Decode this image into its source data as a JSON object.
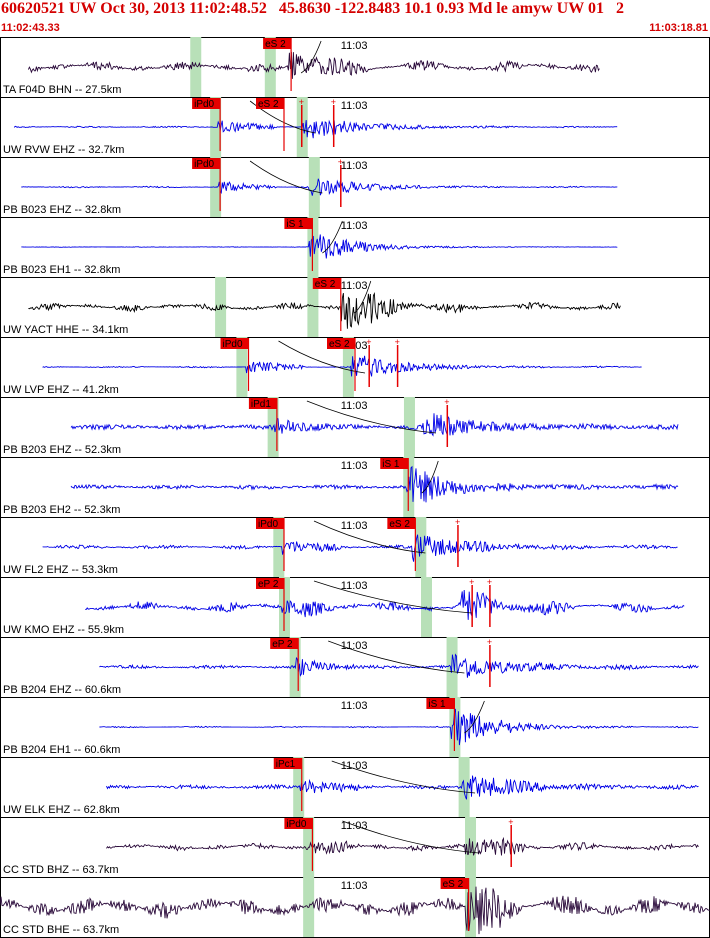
{
  "header": {
    "title": "60620521 UW Oct 30, 2013 11:02:48.52   45.8630 -122.8483 10.1 0.93 Md le amyw UW 01   2",
    "start_time": "11:02:43.33",
    "end_time": "11:03:18.81"
  },
  "colors": {
    "header_red": "#d40000",
    "pick_red": "#e60000",
    "velocity_blue": "#0000e6",
    "broadband_dark": "#2a0a3a",
    "black": "#000000",
    "window_green": "#b8e0b8",
    "border": "#000000"
  },
  "chart_data": {
    "type": "seismogram-stack",
    "time_window": [
      "11:02:43.33",
      "11:03:18.81"
    ],
    "minute_marker_label": "11:03",
    "move_out_curve": true,
    "traces": [
      {
        "label": "TA F04D BHN -- 27.5km",
        "color": "dark",
        "start": 0.04,
        "end": 0.845,
        "amp": 0.34,
        "picks": [
          {
            "label": "eS 2",
            "t": 0.41
          }
        ],
        "windows": [
          0.275,
          0.38
        ],
        "onset": 0.41,
        "burst": 0.41,
        "noise": 0.12,
        "wave": 0.7,
        "ticks": []
      },
      {
        "label": "UW RVW EHZ -- 32.7km",
        "color": "blue",
        "start": 0.02,
        "end": 0.87,
        "amp": 0.42,
        "picks": [
          {
            "label": "iPd0",
            "t": 0.31
          },
          {
            "label": "eS 2",
            "t": 0.4
          }
        ],
        "windows": [
          0.303,
          0.425
        ],
        "onset": 0.31,
        "burst": 0.43,
        "noise": 0.04,
        "wave": 0.05,
        "ticks": [
          0.47,
          0.425
        ]
      },
      {
        "label": "PB B023 EHZ -- 32.8km",
        "color": "blue",
        "start": 0.03,
        "end": 0.87,
        "amp": 0.34,
        "picks": [
          {
            "label": "iPd0",
            "t": 0.31
          }
        ],
        "windows": [
          0.303,
          0.442
        ],
        "onset": 0.31,
        "burst": 0.44,
        "noise": 0.04,
        "wave": 0.05,
        "ticks": [
          0.48
        ]
      },
      {
        "label": "PB B023 EH1 -- 32.8km",
        "color": "blue",
        "start": 0.03,
        "end": 0.87,
        "amp": 0.34,
        "picks": [
          {
            "label": "iS 1",
            "t": 0.44
          }
        ],
        "windows": [
          0.44
        ],
        "onset": 0.44,
        "burst": 0.44,
        "noise": 0.02,
        "wave": 0.02,
        "ticks": []
      },
      {
        "label": "UW YACT HHE -- 34.1km",
        "color": "black",
        "start": 0.04,
        "end": 0.875,
        "amp": 0.5,
        "picks": [
          {
            "label": "eS 2",
            "t": 0.48
          }
        ],
        "windows": [
          0.31,
          0.44
        ],
        "onset": 0.48,
        "burst": 0.485,
        "noise": 0.06,
        "wave": 0.35,
        "ticks": []
      },
      {
        "label": "UW LVP EHZ -- 41.2km",
        "color": "blue",
        "start": 0.06,
        "end": 0.905,
        "amp": 0.42,
        "picks": [
          {
            "label": "iPd0",
            "t": 0.35
          },
          {
            "label": "eS 2",
            "t": 0.5
          }
        ],
        "windows": [
          0.34,
          0.49
        ],
        "onset": 0.35,
        "burst": 0.5,
        "noise": 0.03,
        "wave": 0.05,
        "ticks": [
          0.56,
          0.52
        ]
      },
      {
        "label": "PB B203 EHZ -- 52.3km",
        "color": "blue",
        "start": 0.1,
        "end": 0.955,
        "amp": 0.45,
        "picks": [
          {
            "label": "iPd1",
            "t": 0.39
          }
        ],
        "windows": [
          0.384,
          0.576
        ],
        "onset": 0.39,
        "burst": 0.6,
        "noise": 0.14,
        "wave": 0.1,
        "ticks": [
          0.63
        ]
      },
      {
        "label": "PB B203 EH2 -- 52.3km",
        "color": "blue",
        "start": 0.1,
        "end": 0.955,
        "amp": 0.42,
        "picks": [
          {
            "label": "iS 1",
            "t": 0.575
          }
        ],
        "windows": [
          0.575
        ],
        "onset": 0.575,
        "burst": 0.58,
        "noise": 0.12,
        "wave": 0.1,
        "ticks": []
      },
      {
        "label": "UW FL2 EHZ -- 53.3km",
        "color": "blue",
        "start": 0.06,
        "end": 0.955,
        "amp": 0.45,
        "picks": [
          {
            "label": "iPd0",
            "t": 0.4
          },
          {
            "label": "eS 2",
            "t": 0.585
          }
        ],
        "windows": [
          0.392,
          0.592
        ],
        "onset": 0.4,
        "burst": 0.585,
        "noise": 0.08,
        "wave": 0.1,
        "ticks": [
          0.645
        ]
      },
      {
        "label": "UW KMO EHZ -- 55.9km",
        "color": "blue",
        "start": 0.12,
        "end": 0.965,
        "amp": 0.45,
        "picks": [
          {
            "label": "eP 2",
            "t": 0.4
          }
        ],
        "windows": [
          0.4,
          0.6
        ],
        "onset": 0.4,
        "burst": 0.65,
        "noise": 0.1,
        "wave": 0.5,
        "ticks": [
          0.69,
          0.665
        ]
      },
      {
        "label": "PB B204 EHZ -- 60.6km",
        "color": "blue",
        "start": 0.14,
        "end": 0.985,
        "amp": 0.45,
        "picks": [
          {
            "label": "eP 2",
            "t": 0.42
          }
        ],
        "windows": [
          0.415,
          0.636
        ],
        "onset": 0.42,
        "burst": 0.64,
        "noise": 0.08,
        "wave": 0.1,
        "ticks": [
          0.69
        ]
      },
      {
        "label": "PB B204 EH1 -- 60.6km",
        "color": "blue",
        "start": 0.14,
        "end": 0.985,
        "amp": 0.45,
        "picks": [
          {
            "label": "iS 1",
            "t": 0.64
          }
        ],
        "windows": [
          0.64
        ],
        "onset": 0.64,
        "burst": 0.64,
        "noise": 0.02,
        "wave": 0.05,
        "ticks": []
      },
      {
        "label": "UW ELK EHZ -- 62.8km",
        "color": "blue",
        "start": 0.15,
        "end": 0.985,
        "amp": 0.45,
        "picks": [
          {
            "label": "iPc1",
            "t": 0.425
          }
        ],
        "windows": [
          0.42,
          0.653
        ],
        "onset": 0.425,
        "burst": 0.655,
        "noise": 0.1,
        "wave": 0.1,
        "ticks": []
      },
      {
        "label": "CC STD BHZ -- 63.7km",
        "color": "dark",
        "start": 0.15,
        "end": 0.985,
        "amp": 0.4,
        "picks": [
          {
            "label": "iPd0",
            "t": 0.44
          }
        ],
        "windows": [
          0.434,
          0.662
        ],
        "onset": 0.44,
        "burst": 0.66,
        "noise": 0.03,
        "wave": 0.4,
        "ticks": [
          0.72
        ]
      },
      {
        "label": "CC STD BHE -- 63.7km",
        "color": "dark",
        "start": 0.0,
        "end": 1.0,
        "amp": 0.6,
        "picks": [
          {
            "label": "eS 2",
            "t": 0.66
          }
        ],
        "windows": [
          0.434,
          0.662
        ],
        "onset": 0.66,
        "burst": 0.66,
        "noise": 0.05,
        "wave": 0.8,
        "ticks": []
      }
    ]
  }
}
